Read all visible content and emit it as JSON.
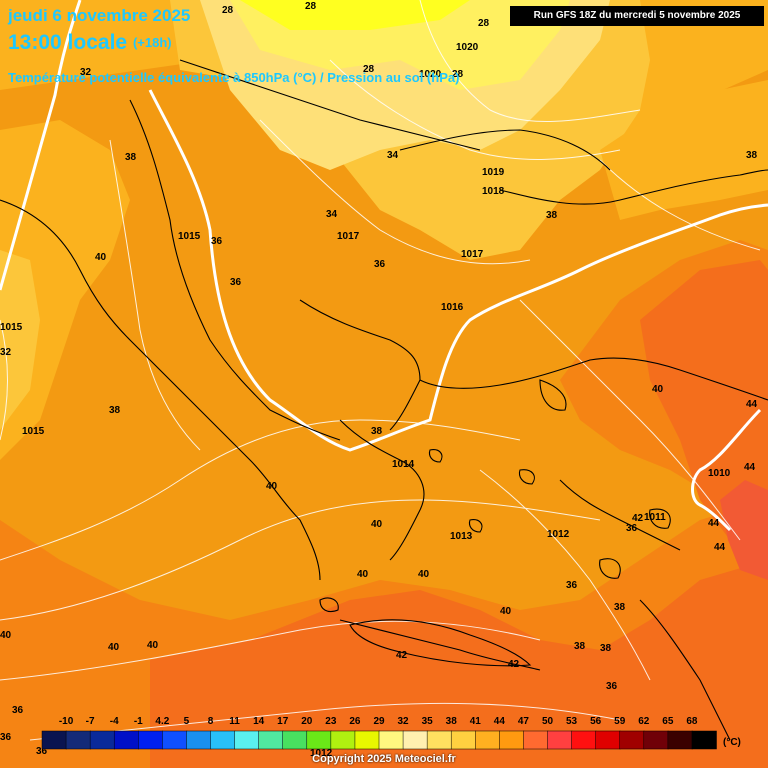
{
  "header": {
    "date": "jeudi 6 novembre 2025",
    "hour": "13:00 locale",
    "lead": "(+18h)",
    "subtitle": "Température potentielle équivalente à 850hPa (°C) / Pression au sol (hPa)",
    "run": "Run GFS 18Z du mercredi 5 novembre 2025"
  },
  "footer": {
    "copyright": "Copyright 2025 Meteociel.fr",
    "unit": "(°C)"
  },
  "legend": {
    "ticks": [
      "-10",
      "-7",
      "-4",
      "-1",
      "4.2",
      "5",
      "8",
      "11",
      "14",
      "17",
      "20",
      "23",
      "26",
      "29",
      "32",
      "35",
      "38",
      "41",
      "44",
      "47",
      "50",
      "53",
      "56",
      "59",
      "62",
      "65",
      "68"
    ],
    "colors": [
      "#0a1450",
      "#142a78",
      "#0a2a9a",
      "#0010c8",
      "#0020f0",
      "#1050ff",
      "#1a90f0",
      "#28c0f8",
      "#5af0f0",
      "#50e8a0",
      "#48e060",
      "#6ae818",
      "#b0f010",
      "#e8f800",
      "#fff880",
      "#fff0b0",
      "#ffe060",
      "#ffd040",
      "#ffb020",
      "#ff9a10",
      "#ff6a30",
      "#ff4040",
      "#ff1010",
      "#e00000",
      "#a00000",
      "#700008",
      "#3a0000",
      "#000000"
    ]
  },
  "pressure_labels": [
    "1020",
    "1020",
    "1019",
    "1018",
    "1017",
    "1017",
    "1016",
    "1015",
    "1015",
    "1015",
    "1014",
    "1013",
    "1012",
    "1011",
    "1010",
    "1012"
  ],
  "temp_labels": [
    "28",
    "28",
    "28",
    "28",
    "28",
    "32",
    "34",
    "34",
    "36",
    "36",
    "36",
    "38",
    "38",
    "38",
    "38",
    "38",
    "38",
    "38",
    "40",
    "40",
    "40",
    "40",
    "40",
    "40",
    "40",
    "40",
    "40",
    "40",
    "42",
    "42",
    "42",
    "44",
    "44",
    "44",
    "44",
    "36",
    "36",
    "36",
    "36",
    "32",
    "36",
    "36",
    "38"
  ]
}
